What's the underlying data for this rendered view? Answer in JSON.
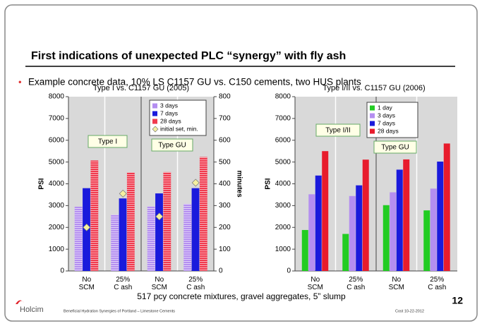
{
  "slide": {
    "title": "First indications of unexpected PLC “synergy” with fly ash",
    "bullet": "Example concrete data, 10% LS C1157 GU vs. C150 cements, two HUS plants",
    "caption": "517 pcy concrete mixtures, gravel aggregates, 5” slump",
    "footer": "Beneficial Hydration Synergies of Portland – Limestone Cements",
    "author_date": "Cost   10-22-2012",
    "page": "12",
    "logo": "Holcim"
  },
  "chart_data": [
    {
      "type": "bar",
      "title": "Type I vs. C1157 GU (2005)",
      "y_label": "PSI",
      "y2_label": "minutes",
      "categories": [
        [
          "No",
          "SCM"
        ],
        [
          "25%",
          "C ash"
        ],
        [
          "No",
          "SCM"
        ],
        [
          "25%",
          "C ash"
        ]
      ],
      "group_labels": [
        "Type I",
        "Type GU"
      ],
      "series": [
        {
          "name": "3 days",
          "color": "#b48ef0",
          "pattern": "hatched",
          "values": [
            2950,
            2580,
            2960,
            3080
          ]
        },
        {
          "name": "7 days",
          "color": "#1a1adc",
          "values": [
            3800,
            3330,
            3560,
            3800
          ]
        },
        {
          "name": "28 days",
          "color": "#f03a4e",
          "pattern": "hatched",
          "values": [
            5070,
            4520,
            4540,
            5230
          ]
        },
        {
          "name": "initial set, min.",
          "color": "#f5f0a0",
          "axis": "y2",
          "marker": "diamond",
          "values": [
            200,
            355,
            250,
            405
          ]
        }
      ],
      "ylim": [
        0,
        8000
      ],
      "yticks": [
        0,
        1000,
        2000,
        3000,
        4000,
        5000,
        6000,
        7000,
        8000
      ],
      "y2lim": [
        0,
        800
      ],
      "y2ticks": [
        0,
        100,
        200,
        300,
        400,
        500,
        600,
        700,
        800
      ],
      "legend": "upper right"
    },
    {
      "type": "bar",
      "title": "Type I/II vs. C1157 GU (2006)",
      "y_label": "PSI",
      "categories": [
        [
          "No",
          "SCM"
        ],
        [
          "25%",
          "C ash"
        ],
        [
          "No",
          "SCM"
        ],
        [
          "25%",
          "C ash"
        ]
      ],
      "group_labels": [
        "Type I/II",
        "Type GU"
      ],
      "series": [
        {
          "name": "1 day",
          "color": "#22cc22",
          "values": [
            1880,
            1700,
            3020,
            2780
          ]
        },
        {
          "name": "3 days",
          "color": "#b48ef0",
          "values": [
            3520,
            3440,
            3610,
            3780
          ]
        },
        {
          "name": "7 days",
          "color": "#1a1adc",
          "values": [
            4380,
            3930,
            4650,
            5020
          ]
        },
        {
          "name": "28 days",
          "color": "#e81c2c",
          "values": [
            5500,
            5110,
            5120,
            5850
          ]
        }
      ],
      "ylim": [
        0,
        8000
      ],
      "yticks": [
        0,
        1000,
        2000,
        3000,
        4000,
        5000,
        6000,
        7000,
        8000
      ],
      "legend": "upper right"
    }
  ]
}
